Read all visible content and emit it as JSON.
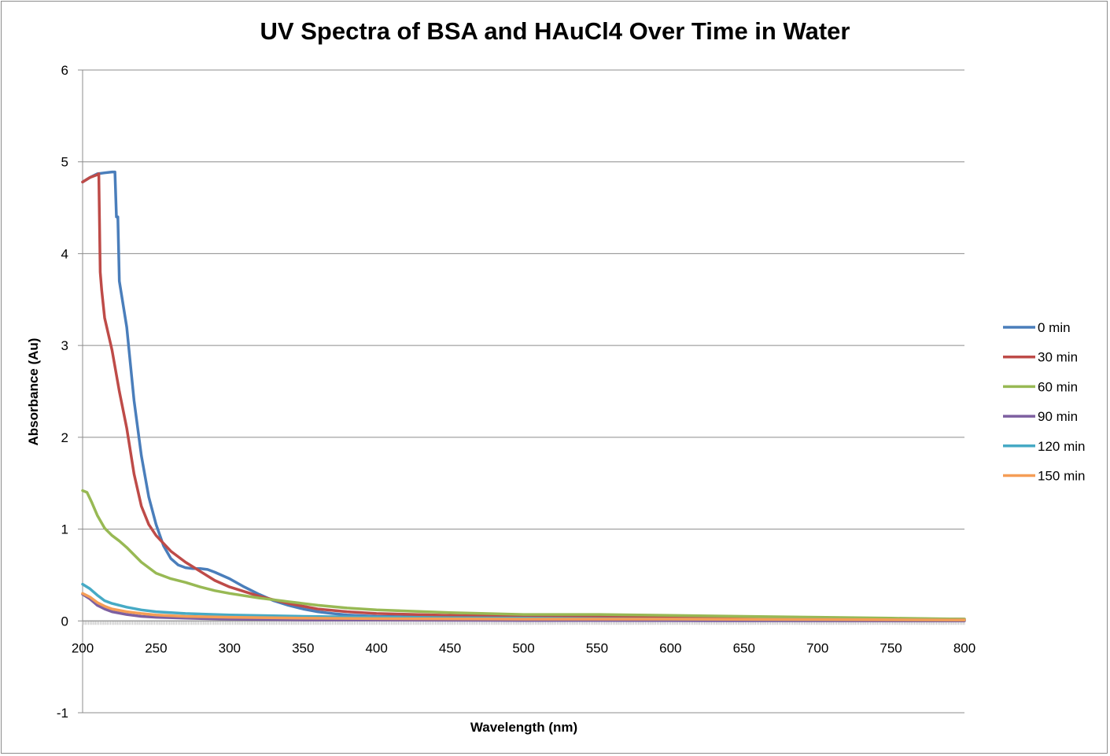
{
  "chart_data": {
    "type": "line",
    "title": "UV Spectra of BSA and HAuCl4 Over Time in Water",
    "xlabel": "Wavelength (nm)",
    "ylabel": "Absorbance (Au)",
    "xlim": [
      200,
      800
    ],
    "ylim": [
      -1,
      6
    ],
    "xticks": [
      200,
      250,
      300,
      350,
      400,
      450,
      500,
      550,
      600,
      650,
      700,
      750,
      800
    ],
    "yticks": [
      -1,
      0,
      1,
      2,
      3,
      4,
      5,
      6
    ],
    "grid": "horizontal",
    "legend": "right",
    "series": [
      {
        "name": "0 min",
        "color": "#4a7ebb",
        "x": [
          200,
          205,
          210,
          215,
          220,
          222,
          223,
          224,
          225,
          230,
          235,
          240,
          245,
          250,
          255,
          260,
          265,
          270,
          275,
          280,
          285,
          290,
          300,
          310,
          320,
          330,
          340,
          350,
          360,
          370,
          380,
          400,
          450,
          500,
          550,
          600,
          650,
          700,
          750,
          800
        ],
        "y": [
          4.78,
          4.83,
          4.87,
          4.88,
          4.89,
          4.89,
          4.4,
          4.4,
          3.7,
          3.2,
          2.4,
          1.8,
          1.35,
          1.05,
          0.82,
          0.68,
          0.61,
          0.58,
          0.57,
          0.57,
          0.56,
          0.53,
          0.46,
          0.37,
          0.29,
          0.22,
          0.17,
          0.13,
          0.1,
          0.08,
          0.065,
          0.05,
          0.04,
          0.035,
          0.03,
          0.025,
          0.02,
          0.015,
          0.01,
          0.005
        ]
      },
      {
        "name": "30 min",
        "color": "#be4b48",
        "x": [
          200,
          205,
          210,
          211,
          212,
          213,
          215,
          220,
          225,
          230,
          235,
          240,
          245,
          250,
          260,
          270,
          280,
          290,
          300,
          320,
          340,
          360,
          380,
          400,
          450,
          500,
          550,
          600,
          650,
          700,
          750,
          800
        ],
        "y": [
          4.78,
          4.83,
          4.86,
          4.87,
          3.8,
          3.6,
          3.3,
          2.95,
          2.5,
          2.1,
          1.6,
          1.25,
          1.05,
          0.93,
          0.76,
          0.64,
          0.54,
          0.44,
          0.37,
          0.27,
          0.19,
          0.13,
          0.1,
          0.08,
          0.06,
          0.05,
          0.045,
          0.04,
          0.035,
          0.03,
          0.025,
          0.02
        ]
      },
      {
        "name": "60 min",
        "color": "#98b954",
        "x": [
          200,
          203,
          206,
          210,
          215,
          220,
          225,
          230,
          240,
          250,
          260,
          270,
          280,
          290,
          300,
          320,
          340,
          360,
          380,
          400,
          450,
          500,
          550,
          600,
          650,
          700,
          750,
          800
        ],
        "y": [
          1.42,
          1.4,
          1.3,
          1.15,
          1.01,
          0.93,
          0.87,
          0.8,
          0.64,
          0.52,
          0.46,
          0.42,
          0.37,
          0.33,
          0.3,
          0.25,
          0.21,
          0.17,
          0.14,
          0.12,
          0.09,
          0.07,
          0.07,
          0.06,
          0.05,
          0.04,
          0.03,
          0.02
        ]
      },
      {
        "name": "90 min",
        "color": "#7d5fa0",
        "x": [
          200,
          205,
          210,
          215,
          220,
          230,
          240,
          250,
          270,
          300,
          350,
          400,
          500,
          600,
          700,
          800
        ],
        "y": [
          0.29,
          0.24,
          0.17,
          0.13,
          0.1,
          0.07,
          0.05,
          0.04,
          0.03,
          0.02,
          0.01,
          0.01,
          0.005,
          0.003,
          0.002,
          0.0
        ]
      },
      {
        "name": "120 min",
        "color": "#46aac5",
        "x": [
          200,
          205,
          210,
          215,
          220,
          230,
          240,
          250,
          260,
          270,
          300,
          350,
          400,
          500,
          600,
          700,
          800
        ],
        "y": [
          0.4,
          0.35,
          0.28,
          0.22,
          0.19,
          0.15,
          0.12,
          0.1,
          0.09,
          0.08,
          0.065,
          0.05,
          0.04,
          0.03,
          0.02,
          0.015,
          0.01
        ]
      },
      {
        "name": "150 min",
        "color": "#f59d56",
        "x": [
          200,
          205,
          210,
          215,
          220,
          230,
          240,
          250,
          270,
          300,
          350,
          400,
          500,
          600,
          700,
          800
        ],
        "y": [
          0.3,
          0.26,
          0.2,
          0.16,
          0.13,
          0.1,
          0.08,
          0.065,
          0.05,
          0.04,
          0.03,
          0.025,
          0.02,
          0.02,
          0.015,
          0.01
        ]
      }
    ]
  }
}
